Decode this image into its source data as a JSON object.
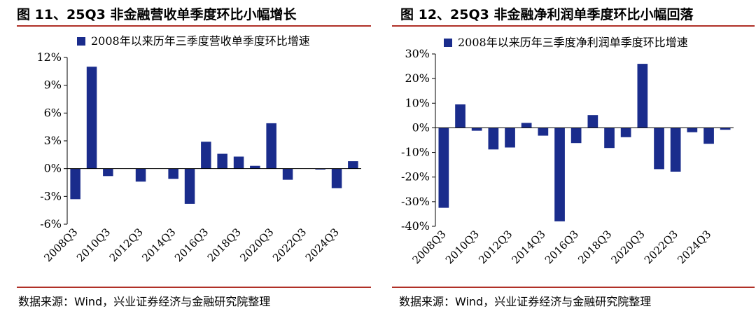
{
  "figures": [
    {
      "title": "图 11、25Q3 非金融营收单季度环比小幅增长",
      "source": "数据来源：Wind，兴业证券经济与金融研究院整理"
    },
    {
      "title": "图 12、25Q3 非金融净利润单季度环比小幅回落",
      "source": "数据来源：Wind，兴业证券经济与金融研究院整理"
    }
  ],
  "colors": {
    "bar": "#1a2c8c",
    "title_rule": "#b03027",
    "axis": "#000000"
  },
  "chart_data": [
    {
      "type": "bar",
      "title": "",
      "legend": "2008年以来历年三季度营收单季度环比增速",
      "legend_position": "top",
      "grid": false,
      "categories": [
        "2008Q3",
        "2009Q3",
        "2010Q3",
        "2011Q3",
        "2012Q3",
        "2013Q3",
        "2014Q3",
        "2015Q3",
        "2016Q3",
        "2017Q3",
        "2018Q3",
        "2019Q3",
        "2020Q3",
        "2021Q3",
        "2022Q3",
        "2023Q3",
        "2024Q3",
        "2025Q3"
      ],
      "tick_labels": [
        "2008Q3",
        "2010Q3",
        "2012Q3",
        "2014Q3",
        "2016Q3",
        "2018Q3",
        "2020Q3",
        "2022Q3",
        "2024Q3"
      ],
      "series": [
        {
          "name": "2008年以来历年三季度营收单季度环比增速",
          "values": [
            -3.3,
            11.0,
            -0.8,
            0.0,
            -1.4,
            0.0,
            -1.1,
            -3.8,
            2.9,
            1.6,
            1.3,
            0.3,
            4.9,
            -1.2,
            0.0,
            -0.1,
            -2.1,
            0.8
          ]
        }
      ],
      "yticks": [
        -6,
        -3,
        0,
        3,
        6,
        9,
        12
      ],
      "ytick_labels": [
        "-6%",
        "-3%",
        "0%",
        "3%",
        "6%",
        "9%",
        "12%"
      ],
      "ylim": [
        -6,
        12
      ],
      "xlabel": "",
      "ylabel": ""
    },
    {
      "type": "bar",
      "title": "",
      "legend": "2008年以来历年三季度净利润单季度环比增速",
      "legend_position": "top",
      "grid": false,
      "categories": [
        "2008Q3",
        "2009Q3",
        "2010Q3",
        "2011Q3",
        "2012Q3",
        "2013Q3",
        "2014Q3",
        "2015Q3",
        "2016Q3",
        "2017Q3",
        "2018Q3",
        "2019Q3",
        "2020Q3",
        "2021Q3",
        "2022Q3",
        "2023Q3",
        "2024Q3",
        "2025Q3"
      ],
      "tick_labels": [
        "2008Q3",
        "2010Q3",
        "2012Q3",
        "2014Q3",
        "2016Q3",
        "2018Q3",
        "2020Q3",
        "2022Q3",
        "2024Q3"
      ],
      "series": [
        {
          "name": "2008年以来历年三季度净利润单季度环比增速",
          "values": [
            -32.5,
            9.5,
            -1.2,
            -8.8,
            -8.0,
            2.0,
            -3.2,
            -38.0,
            -6.2,
            5.2,
            -8.2,
            -3.8,
            26.0,
            -16.8,
            -17.8,
            -1.8,
            -6.5,
            -0.8
          ]
        }
      ],
      "yticks": [
        -40,
        -30,
        -20,
        -10,
        0,
        10,
        20,
        30
      ],
      "ytick_labels": [
        "-40%",
        "-30%",
        "-20%",
        "-10%",
        "0%",
        "10%",
        "20%",
        "30%"
      ],
      "ylim": [
        -40,
        30
      ],
      "xlabel": "",
      "ylabel": ""
    }
  ]
}
